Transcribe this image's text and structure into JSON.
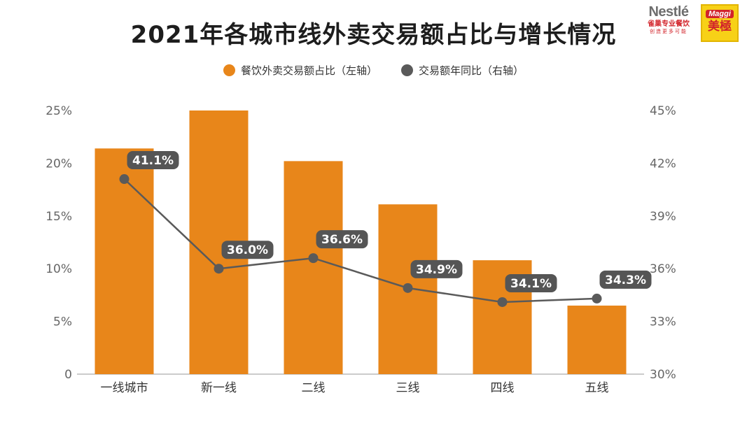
{
  "title": "2021年各城市线外卖交易额占比与增长情况",
  "legend": {
    "bar": "餐饮外卖交易额占比（左轴）",
    "line": "交易额年同比（右轴）"
  },
  "logos": {
    "nestle_name": "Nestlé",
    "nestle_sub": "雀巢专业餐饮",
    "nestle_slogan": "创造更多可能",
    "maggi_en": "Maggi",
    "maggi_cn": "美極"
  },
  "colors": {
    "bar": "#E8861A",
    "line": "#5A5A5A",
    "label_bg": "#555555",
    "axis": "#BBBBBB"
  },
  "chart_data": {
    "type": "bar",
    "title": "2021年各城市线外卖交易额占比与增长情况",
    "categories": [
      "一线城市",
      "新一线",
      "二线",
      "三线",
      "四线",
      "五线"
    ],
    "series": [
      {
        "name": "餐饮外卖交易额占比（左轴）",
        "type": "bar",
        "axis": "left",
        "values": [
          21.4,
          25.0,
          20.2,
          16.1,
          10.8,
          6.5
        ]
      },
      {
        "name": "交易额年同比（右轴）",
        "type": "line",
        "axis": "right",
        "values": [
          41.1,
          36.0,
          36.6,
          34.9,
          34.1,
          34.3
        ],
        "labels": [
          "41.1%",
          "36.0%",
          "36.6%",
          "34.9%",
          "34.1%",
          "34.3%"
        ]
      }
    ],
    "left_axis": {
      "ylim": [
        0,
        25
      ],
      "ticks": [
        "0",
        "5%",
        "10%",
        "15%",
        "20%",
        "25%"
      ],
      "tick_values": [
        0,
        5,
        10,
        15,
        20,
        25
      ]
    },
    "right_axis": {
      "ylim": [
        30,
        45
      ],
      "ticks": [
        "30%",
        "33%",
        "36%",
        "39%",
        "42%",
        "45%"
      ],
      "tick_values": [
        30,
        33,
        36,
        39,
        42,
        45
      ]
    },
    "xlabel": "",
    "ylabel": "",
    "grid": true,
    "legend_position": "top-center"
  }
}
